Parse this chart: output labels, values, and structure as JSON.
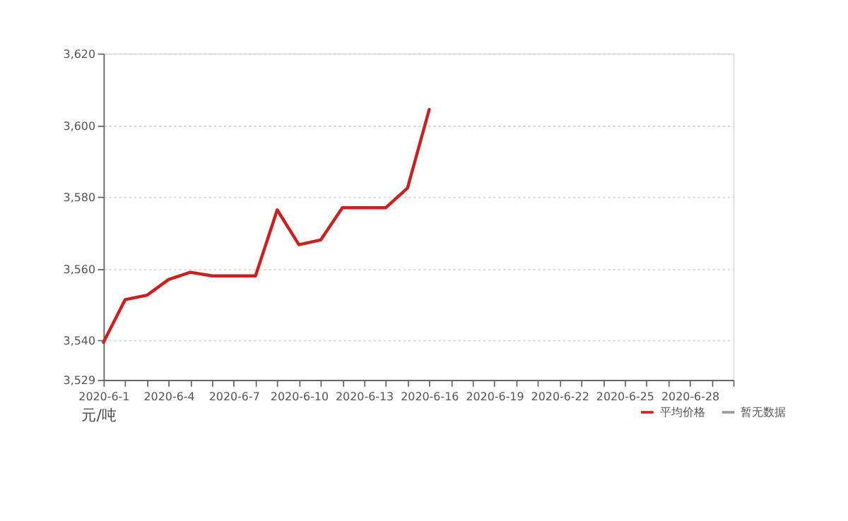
{
  "chart_data": {
    "type": "line",
    "categories": [
      "2020-6-1",
      null,
      null,
      "2020-6-4",
      null,
      null,
      "2020-6-7",
      null,
      null,
      "2020-6-10",
      null,
      null,
      "2020-6-13",
      null,
      null,
      "2020-6-16",
      null,
      null,
      "2020-6-19",
      null,
      null,
      "2020-6-22",
      null,
      null,
      "2020-6-25",
      null,
      null,
      "2020-6-28",
      null,
      null
    ],
    "series": [
      {
        "name": "平均价格",
        "color": "#cc1f1f",
        "values": [
          3539.5,
          3551.4,
          3552.6,
          3557,
          3559,
          3558,
          3558,
          3558,
          3576.4,
          3566.7,
          3568,
          3577,
          3577,
          3577,
          3582.5,
          3604.4,
          null,
          null,
          null,
          null,
          null,
          null,
          null,
          null,
          null,
          null,
          null,
          null,
          null,
          null
        ]
      },
      {
        "name": "暂无数据",
        "color": "#999999",
        "values": [
          null,
          null,
          null,
          null,
          null,
          null,
          null,
          null,
          null,
          null,
          null,
          null,
          null,
          null,
          null,
          null,
          null,
          null,
          null,
          null,
          null,
          null,
          null,
          null,
          null,
          null,
          null,
          null,
          null,
          null
        ]
      }
    ],
    "ylabel": "元/吨",
    "ylim": [
      3529,
      3620
    ],
    "yticks": [
      {
        "value": 3529,
        "label": "3,529"
      },
      {
        "value": 3540,
        "label": "3,540"
      },
      {
        "value": 3560,
        "label": "3,560"
      },
      {
        "value": 3580,
        "label": "3,580"
      },
      {
        "value": 3600,
        "label": "3,600"
      },
      {
        "value": 3620,
        "label": "3,620"
      }
    ],
    "grid": "y",
    "legend": "bottom right",
    "marker": "none",
    "line_style": "solid"
  }
}
